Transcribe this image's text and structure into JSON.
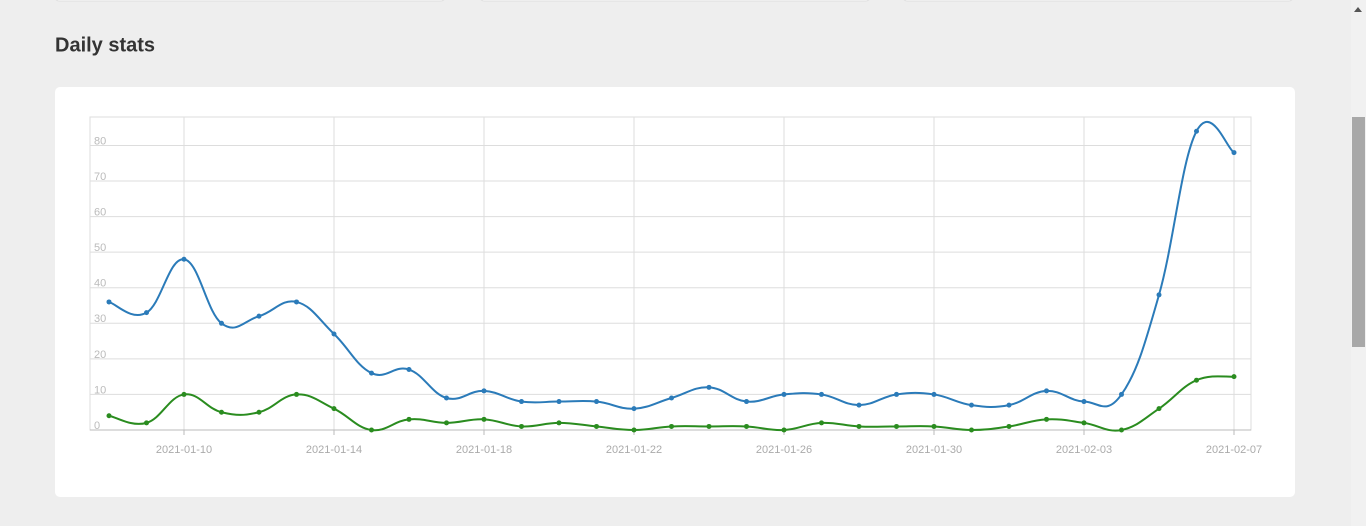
{
  "page_title": "Daily stats",
  "chart_data": {
    "type": "line",
    "x": [
      "2021-01-08",
      "2021-01-09",
      "2021-01-10",
      "2021-01-11",
      "2021-01-12",
      "2021-01-13",
      "2021-01-14",
      "2021-01-15",
      "2021-01-16",
      "2021-01-17",
      "2021-01-18",
      "2021-01-19",
      "2021-01-20",
      "2021-01-21",
      "2021-01-22",
      "2021-01-23",
      "2021-01-24",
      "2021-01-25",
      "2021-01-26",
      "2021-01-27",
      "2021-01-28",
      "2021-01-29",
      "2021-01-30",
      "2021-01-31",
      "2021-02-01",
      "2021-02-02",
      "2021-02-03",
      "2021-02-04",
      "2021-02-05",
      "2021-02-06",
      "2021-02-07"
    ],
    "series": [
      {
        "color": "#2b7bb9",
        "values": [
          36,
          33,
          48,
          30,
          32,
          36,
          27,
          16,
          17,
          9,
          11,
          8,
          8,
          8,
          6,
          9,
          12,
          8,
          10,
          10,
          7,
          10,
          10,
          7,
          7,
          11,
          8,
          10,
          38,
          84,
          78
        ]
      },
      {
        "color": "#2a8c1f",
        "values": [
          4,
          2,
          10,
          5,
          5,
          10,
          6,
          0,
          3,
          2,
          3,
          1,
          2,
          1,
          0,
          1,
          1,
          1,
          0,
          2,
          1,
          1,
          1,
          0,
          1,
          3,
          2,
          0,
          6,
          14,
          15
        ]
      }
    ],
    "xticks": [
      "2021-01-10",
      "2021-01-14",
      "2021-01-18",
      "2021-01-22",
      "2021-01-26",
      "2021-01-30",
      "2021-02-03",
      "2021-02-07"
    ],
    "ylim": [
      0,
      88
    ],
    "yticks": [
      0,
      10,
      20,
      30,
      40,
      50,
      60,
      70,
      80
    ],
    "grid": true
  }
}
